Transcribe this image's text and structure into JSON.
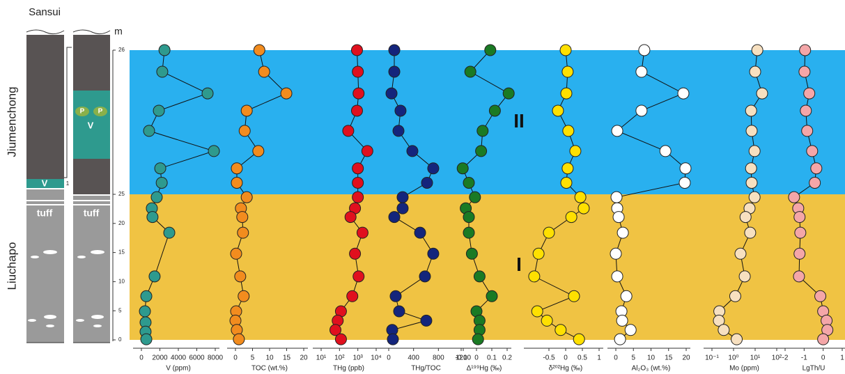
{
  "section": {
    "title": "Sansui",
    "unit": "m",
    "formations": [
      "Jiumenchong",
      "Liuchapo"
    ],
    "tuff": "tuff",
    "volcanic": "V",
    "phosphorite": "P",
    "note": "1"
  },
  "depth_axis": {
    "ticks": [
      0,
      5,
      10,
      15,
      20,
      25,
      26
    ]
  },
  "intervals": [
    {
      "label": "II",
      "from": 25,
      "to": 26,
      "color": "#29b0ef"
    },
    {
      "label": "I",
      "from": 0,
      "to": 25,
      "color": "#f0c343"
    }
  ],
  "chart_data": [
    {
      "type": "profile",
      "xlabel": "V (ppm)",
      "color": "#2e9a8e",
      "xlim": [
        0,
        8000
      ],
      "xticks": [
        0,
        2000,
        4000,
        6000,
        8000
      ],
      "depth": [
        26,
        25.85,
        25.7,
        25.58,
        25.44,
        25.3,
        25.18,
        25.08,
        24.5,
        22.6,
        21.1,
        18.4,
        10.9,
        7.5,
        4.9,
        3.0,
        1.4,
        0.1
      ],
      "values": [
        2500,
        2260,
        7170,
        1890,
        830,
        7850,
        2040,
        2200,
        1660,
        1130,
        1200,
        3020,
        1430,
        530,
        380,
        450,
        450,
        530
      ]
    },
    {
      "type": "profile",
      "xlabel": "TOC (wt.%)",
      "color": "#f28c1e",
      "xlim": [
        0,
        20
      ],
      "xticks": [
        0,
        5,
        10,
        15,
        20
      ],
      "depth": [
        26,
        25.85,
        25.7,
        25.58,
        25.44,
        25.3,
        25.18,
        25.08,
        24.5,
        22.6,
        21.1,
        18.4,
        14.8,
        10.9,
        7.5,
        4.9,
        3.3,
        1.7,
        0.1
      ],
      "values": [
        7,
        8.4,
        14.9,
        3.3,
        2.7,
        6.7,
        0.4,
        0.4,
        3.3,
        1.6,
        2.0,
        2.2,
        0.2,
        1.4,
        2.4,
        0.2,
        0,
        0.4,
        1.0
      ]
    },
    {
      "type": "profile",
      "xlabel": "THg (ppb)",
      "color": "#e0101e",
      "log": true,
      "xlim": [
        10,
        10000
      ],
      "xticks": [
        {
          "value": 10,
          "label": "10¹"
        },
        {
          "value": 100,
          "label": "10²"
        },
        {
          "value": 1000,
          "label": "10³"
        },
        {
          "value": 10000,
          "label": "10⁴"
        }
      ],
      "depth": [
        26,
        25.85,
        25.7,
        25.58,
        25.44,
        25.3,
        25.18,
        25.08,
        24.5,
        22.6,
        21.1,
        18.4,
        14.8,
        10.9,
        7.5,
        4.9,
        3.3,
        1.7,
        0.1
      ],
      "values": [
        900,
        1000,
        1100,
        900,
        300,
        3300,
        1000,
        1000,
        1000,
        700,
        400,
        1800,
        700,
        1100,
        500,
        120,
        80,
        60,
        120
      ]
    },
    {
      "type": "profile",
      "xlabel": "THg/TOC",
      "color": "#14257c",
      "xlim": [
        0,
        1200
      ],
      "xticks": [
        0,
        400,
        800,
        1200
      ],
      "depth": [
        26,
        25.85,
        25.7,
        25.58,
        25.44,
        25.3,
        25.18,
        25.08,
        24.5,
        22.6,
        21.1,
        18.4,
        14.8,
        10.9,
        7.5,
        4.9,
        3.3,
        1.7,
        0.1
      ],
      "values": [
        90,
        90,
        45,
        190,
        157,
        381,
        717,
        617,
        224,
        224,
        90,
        505,
        717,
        583,
        112,
        168,
        605,
        56,
        67
      ]
    },
    {
      "type": "profile",
      "xlabel": "Δ¹⁹⁹Hg (‰)",
      "color": "#1a7a24",
      "xlim": [
        -0.1,
        0.2
      ],
      "xticks": [
        -0.1,
        0,
        0.1,
        0.2
      ],
      "depth": [
        26,
        25.85,
        25.7,
        25.58,
        25.44,
        25.3,
        25.18,
        25.08,
        24.5,
        22.6,
        21.1,
        18.4,
        14.8,
        10.9,
        7.5,
        4.9,
        3.3,
        1.7,
        0.1
      ],
      "values": [
        0.09,
        -0.04,
        0.21,
        0.12,
        0.04,
        0.03,
        -0.09,
        -0.05,
        -0.01,
        -0.07,
        -0.05,
        -0.05,
        -0.03,
        0.02,
        0.1,
        0,
        0.02,
        0.02,
        0.01
      ]
    },
    {
      "type": "profile",
      "xlabel": "δ²⁰²Hg (‰)",
      "color": "#ffe000",
      "xlim": [
        -1,
        1
      ],
      "xticks": [
        -0.5,
        0,
        0.5,
        1
      ],
      "depth": [
        26,
        25.85,
        25.7,
        25.58,
        25.44,
        25.3,
        25.18,
        25.08,
        24.5,
        22.6,
        21.1,
        18.4,
        14.8,
        10.9,
        7.5,
        4.9,
        3.3,
        1.7,
        0.1
      ],
      "values": [
        0,
        0.06,
        0.02,
        -0.23,
        0.08,
        0.29,
        0.06,
        0.02,
        0.44,
        0.54,
        0.17,
        -0.5,
        -0.81,
        -0.94,
        0.25,
        -0.85,
        -0.56,
        -0.15,
        0.4
      ]
    },
    {
      "type": "profile",
      "xlabel": "Al₂O₃ (wt.%)",
      "color": "#ffffff",
      "xlim": [
        0,
        20
      ],
      "xticks": [
        0,
        5,
        10,
        15,
        20
      ],
      "depth": [
        26,
        25.85,
        25.7,
        25.58,
        25.44,
        25.3,
        25.18,
        25.08,
        24.5,
        22.6,
        21.1,
        18.4,
        14.8,
        10.9,
        7.5,
        4.9,
        3.3,
        1.7,
        0.1
      ],
      "values": [
        8.1,
        7.3,
        19.2,
        7.3,
        0.4,
        14.1,
        19.8,
        19.6,
        0.2,
        0.4,
        0.8,
        2.0,
        0,
        0.4,
        3.0,
        1.6,
        1.8,
        4.2,
        1.2
      ]
    },
    {
      "type": "profile",
      "xlabel": "Mo (ppm)",
      "color": "#f7e0c0",
      "log": true,
      "xlim": [
        0.1,
        100
      ],
      "xticks": [
        {
          "value": 0.1,
          "label": "10⁻¹"
        },
        {
          "value": 1,
          "label": "10⁰"
        },
        {
          "value": 10,
          "label": "10¹"
        },
        {
          "value": 100,
          "label": "10²"
        }
      ],
      "depth": [
        26,
        25.85,
        25.7,
        25.58,
        25.44,
        25.3,
        25.18,
        25.08,
        24.5,
        22.6,
        21.1,
        18.4,
        14.8,
        10.9,
        7.5,
        4.9,
        3.3,
        1.7,
        0.1
      ],
      "values": [
        12.6,
        10,
        21,
        6.5,
        6.9,
        9.4,
        6.5,
        6.9,
        9.4,
        5.5,
        3.6,
        5.9,
        2.1,
        3.3,
        1.2,
        0.22,
        0.21,
        0.35,
        1.4
      ]
    },
    {
      "type": "profile",
      "xlabel": "LgTh/U",
      "color": "#f4a6a8",
      "xlim": [
        -2,
        1
      ],
      "xticks": [
        -2,
        -1,
        0,
        1
      ],
      "depth": [
        26,
        25.85,
        25.7,
        25.58,
        25.44,
        25.3,
        25.18,
        25.08,
        24.5,
        22.6,
        21.1,
        18.4,
        14.8,
        10.9,
        7.5,
        4.9,
        3.3,
        1.7,
        0.1
      ],
      "values": [
        -0.95,
        -0.98,
        -0.73,
        -0.91,
        -0.84,
        -0.58,
        -0.36,
        -0.44,
        -1.53,
        -1.31,
        -1.24,
        -1.2,
        -1.24,
        -1.27,
        -0.15,
        0,
        0.18,
        0.22,
        0
      ]
    }
  ]
}
